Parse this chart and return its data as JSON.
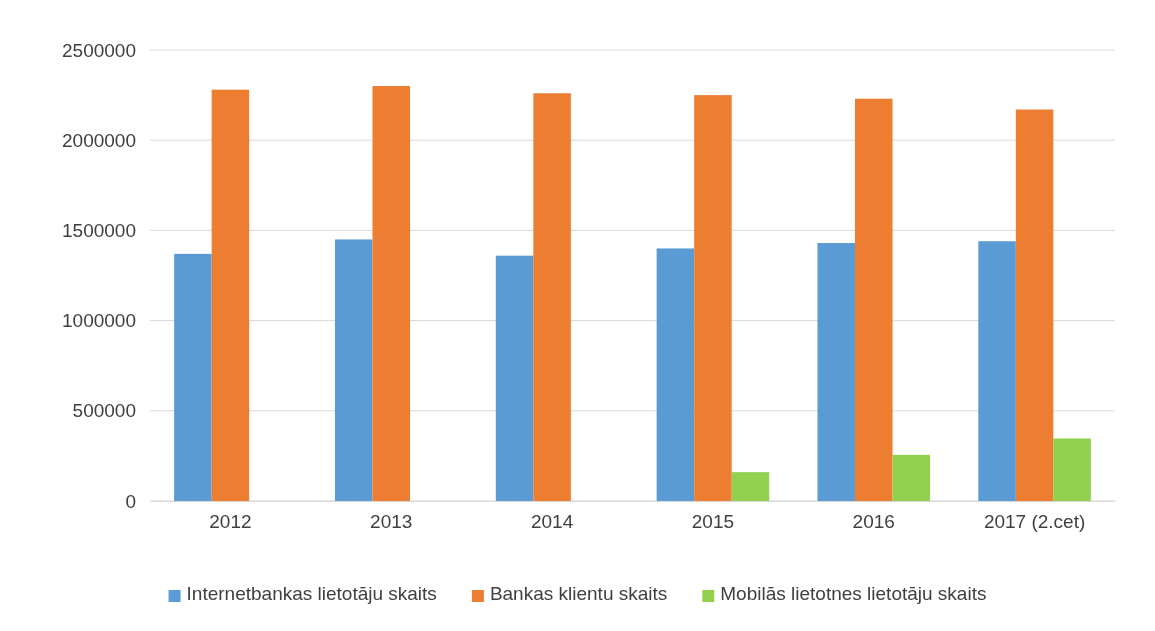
{
  "chart_data": {
    "type": "bar",
    "categories": [
      "2012",
      "2013",
      "2014",
      "2015",
      "2016",
      "2017 (2.cet)"
    ],
    "series": [
      {
        "name": "Internetbankas lietotāju skaits",
        "color": "#5b9bd5",
        "values": [
          1370000,
          1450000,
          1360000,
          1400000,
          1430000,
          1440000
        ]
      },
      {
        "name": "Bankas klientu skaits",
        "color": "#ed7d31",
        "values": [
          2280000,
          2300000,
          2260000,
          2250000,
          2230000,
          2170000
        ]
      },
      {
        "name": "Mobilās lietotnes lietotāju skaits",
        "color": "#92d050",
        "values": [
          0,
          0,
          0,
          160000,
          256000,
          347000
        ]
      }
    ],
    "ylim": [
      0,
      2500000
    ],
    "yticks": [
      0,
      500000,
      1000000,
      1500000,
      2000000,
      2500000
    ],
    "grid": "y",
    "legend": "bottom"
  }
}
